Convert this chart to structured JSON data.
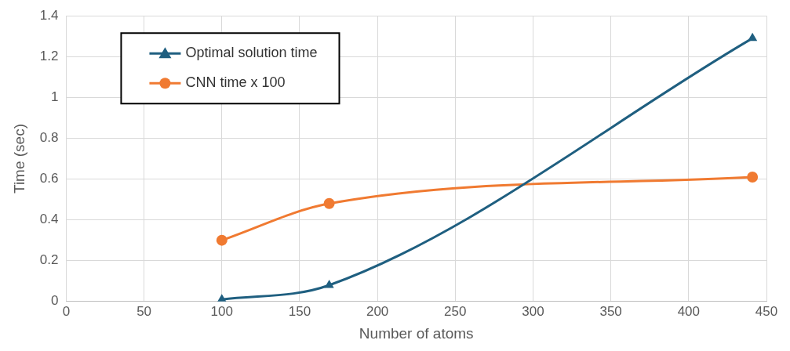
{
  "chart_data": {
    "type": "line",
    "xlabel": "Number of atoms",
    "ylabel": "Time (sec)",
    "xlim": [
      0,
      450
    ],
    "xticks": [
      0,
      50,
      100,
      150,
      200,
      250,
      300,
      350,
      400,
      450
    ],
    "ylim": [
      0,
      1.4
    ],
    "yticks": [
      0,
      0.2,
      0.4,
      0.6,
      0.8,
      1,
      1.2,
      1.4
    ],
    "grid": true,
    "legend": "top left",
    "series": [
      {
        "name": "Optimal solution time",
        "color": "#1f5f80",
        "marker": "triangle",
        "x": [
          100,
          169,
          441
        ],
        "values": [
          0.01,
          0.08,
          1.29
        ]
      },
      {
        "name": "CNN time x 100",
        "color": "#f07a31",
        "marker": "circle",
        "x": [
          100,
          169,
          441
        ],
        "values": [
          0.3,
          0.48,
          0.61
        ]
      }
    ]
  }
}
